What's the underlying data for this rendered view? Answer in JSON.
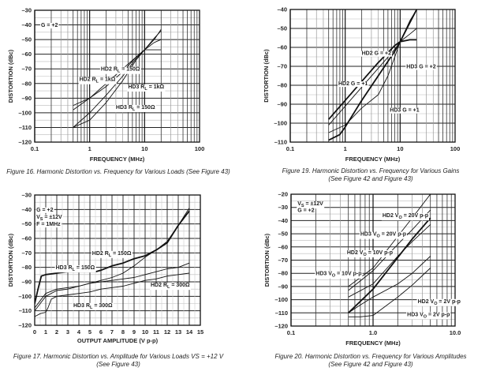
{
  "chart_data": [
    {
      "id": "fig16",
      "type": "line",
      "xscale": "log",
      "caption": "Figure 16. Harmonic Distortion vs. Frequency for Various Loads (See Figure 43)",
      "caption_line2": "",
      "xlabel": "FREQUENCY (MHz)",
      "ylabel": "DISTORTION (dBc)",
      "xlim": [
        0.1,
        100
      ],
      "ylim": [
        -120,
        -30
      ],
      "xticks": [
        {
          "v": 0.1,
          "label": "0.1"
        },
        {
          "v": 1,
          "label": "1"
        },
        {
          "v": 10,
          "label": "10"
        },
        {
          "v": 100,
          "label": "100"
        }
      ],
      "yticks": [
        -30,
        -40,
        -50,
        -60,
        -70,
        -80,
        -90,
        -100,
        -110,
        -120
      ],
      "ytick_labels": [
        "–30",
        "–40",
        "–50",
        "–60",
        "–70",
        "–80",
        "–90",
        "–100",
        "–110",
        "–120"
      ],
      "grid": true,
      "annotations": [
        {
          "text": "G = +2",
          "x": 0.13,
          "y": -40
        },
        {
          "text": "HD2 RL = 150Ω",
          "x": 1.6,
          "y": -70
        },
        {
          "text": "HD2 RL = 1kΩ",
          "x": 0.65,
          "y": -77
        },
        {
          "text": "HD3 RL = 1kΩ",
          "x": 5.0,
          "y": -82
        },
        {
          "text": "HD3 RL = 150Ω",
          "x": 3.0,
          "y": -96
        }
      ],
      "series": [
        {
          "name": "HD2 RL = 150Ω",
          "weight": "thin",
          "x": [
            0.5,
            1,
            2,
            4,
            7,
            10,
            15,
            20
          ],
          "y": [
            -95,
            -90,
            -82,
            -72,
            -62,
            -57,
            -52,
            -50
          ]
        },
        {
          "name": "HD2 RL = 1kΩ",
          "weight": "thin",
          "x": [
            0.5,
            1,
            2,
            4,
            7,
            10,
            15,
            20
          ],
          "y": [
            -98,
            -90,
            -80,
            -70,
            -62,
            -57,
            -57,
            -57
          ]
        },
        {
          "name": "HD3 RL = 1kΩ",
          "weight": "thin",
          "x": [
            0.5,
            1,
            2,
            4,
            7,
            10,
            15,
            20
          ],
          "y": [
            -110,
            -100,
            -88,
            -75,
            -63,
            -57,
            -50,
            -43
          ]
        },
        {
          "name": "HD3 RL = 150Ω",
          "weight": "thin",
          "x": [
            0.5,
            1,
            2,
            4,
            7,
            10,
            15,
            20
          ],
          "y": [
            -110,
            -105,
            -93,
            -78,
            -64,
            -57,
            -49,
            -44
          ]
        }
      ]
    },
    {
      "id": "fig19",
      "type": "line",
      "xscale": "log",
      "caption": "Figure 19. Harmonic Distortion vs. Frequency for Various Gains",
      "caption_line2": "(See Figure 42 and Figure 43)",
      "xlabel": "FREQUENCY (MHz)",
      "ylabel": "DISTORTION (dBc)",
      "xlim": [
        0.1,
        100
      ],
      "ylim": [
        -110,
        -40
      ],
      "xticks": [
        {
          "v": 0.1,
          "label": "0.1"
        },
        {
          "v": 1,
          "label": "1"
        },
        {
          "v": 10,
          "label": "10"
        },
        {
          "v": 100,
          "label": "100"
        }
      ],
      "yticks": [
        -40,
        -50,
        -60,
        -70,
        -80,
        -90,
        -100,
        -110
      ],
      "ytick_labels": [
        "–40",
        "–50",
        "–60",
        "–70",
        "–80",
        "–90",
        "–100",
        "–110"
      ],
      "grid": true,
      "annotations": [
        {
          "text": "HD2 G = +2",
          "x": 2.0,
          "y": -63
        },
        {
          "text": "HD3 G = +2",
          "x": 13,
          "y": -70
        },
        {
          "text": "HD2 G = +1",
          "x": 0.75,
          "y": -79
        },
        {
          "text": "HD3 G = +1",
          "x": 6.5,
          "y": -93
        }
      ],
      "series": [
        {
          "name": "HD2 G = +1",
          "weight": "thick",
          "x": [
            0.5,
            1,
            2,
            4,
            8,
            10,
            15,
            20
          ],
          "y": [
            -98,
            -88,
            -78,
            -68,
            -59,
            -57,
            -56,
            -56
          ]
        },
        {
          "name": "HD2 G = +2",
          "weight": "thin",
          "x": [
            0.5,
            1,
            2,
            4,
            8,
            10,
            15,
            20
          ],
          "y": [
            -101,
            -91,
            -81,
            -71,
            -61,
            -57,
            -53,
            -50
          ]
        },
        {
          "name": "HD3 G = +2",
          "weight": "thick",
          "x": [
            0.5,
            0.8,
            1,
            2,
            4,
            8,
            10,
            15,
            20
          ],
          "y": [
            -109,
            -106,
            -102,
            -88,
            -75,
            -62,
            -57,
            -47,
            -40
          ]
        },
        {
          "name": "HD3 G = +1",
          "weight": "thin",
          "x": [
            0.5,
            1,
            2,
            4,
            6,
            8,
            10,
            15,
            20
          ],
          "y": [
            -105,
            -101,
            -92,
            -85,
            -75,
            -65,
            -57,
            -46,
            -40
          ]
        }
      ]
    },
    {
      "id": "fig17",
      "type": "line",
      "xscale": "linear",
      "caption": "Figure 17. Harmonic Distortion vs. Amplitude for Various Loads VS = +12 V",
      "caption_line2": "(See Figure 43)",
      "xlabel": "OUTPUT AMPLITUDE (V p-p)",
      "ylabel": "DISTORTION (dBc)",
      "xlim": [
        0,
        15
      ],
      "ylim": [
        -120,
        -30
      ],
      "xticks": [
        {
          "v": 0,
          "label": "0"
        },
        {
          "v": 1,
          "label": "1"
        },
        {
          "v": 2,
          "label": "2"
        },
        {
          "v": 3,
          "label": "3"
        },
        {
          "v": 4,
          "label": "4"
        },
        {
          "v": 5,
          "label": "5"
        },
        {
          "v": 6,
          "label": "6"
        },
        {
          "v": 7,
          "label": "7"
        },
        {
          "v": 8,
          "label": "8"
        },
        {
          "v": 9,
          "label": "9"
        },
        {
          "v": 10,
          "label": "10"
        },
        {
          "v": 11,
          "label": "11"
        },
        {
          "v": 12,
          "label": "12"
        },
        {
          "v": 13,
          "label": "13"
        },
        {
          "v": 14,
          "label": "14"
        },
        {
          "v": 15,
          "label": "15"
        }
      ],
      "yticks": [
        -30,
        -40,
        -50,
        -60,
        -70,
        -80,
        -90,
        -100,
        -110,
        -120
      ],
      "ytick_labels": [
        "–30",
        "–40",
        "–50",
        "–60",
        "–70",
        "–80",
        "–90",
        "–100",
        "–110",
        "–120"
      ],
      "grid": true,
      "annotations": [
        {
          "text": "G = +2",
          "x": 0.15,
          "y": -40
        },
        {
          "text": "VS = ±12V",
          "x": 0.15,
          "y": -45
        },
        {
          "text": "F = 1MHz",
          "x": 0.15,
          "y": -50
        },
        {
          "text": "HD2 RL = 150Ω",
          "x": 5.2,
          "y": -70
        },
        {
          "text": "HD3 RL = 150Ω",
          "x": 1.9,
          "y": -80
        },
        {
          "text": "HD2 RL = 300Ω",
          "x": 10.5,
          "y": -92
        },
        {
          "text": "HD3 RL = 300Ω",
          "x": 3.5,
          "y": -106
        }
      ],
      "series": [
        {
          "name": "HD2 RL = 150Ω",
          "weight": "thick",
          "x": [
            0,
            0.3,
            0.6,
            1,
            2,
            3,
            4,
            5,
            5.5,
            6,
            7,
            8,
            9,
            10,
            11,
            12,
            13,
            14
          ],
          "y": [
            -105,
            -95,
            -86,
            -85,
            -84,
            -83,
            -83,
            -83,
            -83,
            -82,
            -79,
            -77,
            -74,
            -72,
            -68,
            -63,
            -51,
            -41
          ]
        },
        {
          "name": "HD3 RL = 150Ω",
          "weight": "thin",
          "x": [
            0,
            0.5,
            1,
            2,
            3,
            4,
            5,
            6,
            7,
            8,
            9,
            10,
            11,
            12,
            13,
            14
          ],
          "y": [
            -108,
            -103,
            -98,
            -95,
            -94,
            -93,
            -91,
            -89,
            -87,
            -84,
            -79,
            -73,
            -68,
            -62,
            -51,
            -39
          ]
        },
        {
          "name": "HD2 RL = 300Ω",
          "weight": "thin",
          "x": [
            0,
            0.5,
            1,
            2,
            3,
            4,
            5,
            6,
            7,
            8,
            9,
            10,
            11,
            12,
            13,
            14
          ],
          "y": [
            -110,
            -105,
            -100,
            -96,
            -95,
            -93,
            -91,
            -90,
            -89,
            -88,
            -87,
            -85,
            -83,
            -81,
            -80,
            -77
          ]
        },
        {
          "name": "HD3 RL = 300Ω",
          "weight": "thin",
          "x": [
            0,
            0.5,
            1,
            1.2,
            1.5,
            2,
            3,
            4,
            5,
            6,
            7,
            8,
            9,
            10,
            11,
            12,
            13,
            14
          ],
          "y": [
            -114,
            -112,
            -111,
            -108,
            -102,
            -100,
            -99,
            -98,
            -97,
            -95,
            -94,
            -93,
            -91,
            -89,
            -88,
            -86,
            -85,
            -84
          ]
        }
      ]
    },
    {
      "id": "fig20",
      "type": "line",
      "xscale": "log",
      "caption": "Figure 20. Harmonic Distortion vs. Frequency for Various Amplitudes",
      "caption_line2": "(See Figure 42 and Figure 43)",
      "xlabel": "FREQUENCY (MHz)",
      "ylabel": "DISTORTION (dBc)",
      "xlim": [
        0.1,
        10
      ],
      "ylim": [
        -120,
        -20
      ],
      "xticks": [
        {
          "v": 0.1,
          "label": "0.1"
        },
        {
          "v": 1,
          "label": "1.0"
        },
        {
          "v": 10,
          "label": "10.0"
        }
      ],
      "yticks": [
        -20,
        -30,
        -40,
        -50,
        -60,
        -70,
        -80,
        -90,
        -100,
        -110,
        -120
      ],
      "ytick_labels": [
        "–20",
        "–30",
        "–40",
        "–50",
        "–60",
        "–70",
        "–80",
        "–90",
        "–100",
        "–110",
        "–120"
      ],
      "grid": true,
      "annotations": [
        {
          "text": "VS = ±12V",
          "x": 0.12,
          "y": -27
        },
        {
          "text": "G = +2",
          "x": 0.12,
          "y": -32
        },
        {
          "text": "HD2 VO = 20V p-p",
          "x": 1.3,
          "y": -36
        },
        {
          "text": "HD3 VO = 20V p-p",
          "x": 0.7,
          "y": -50
        },
        {
          "text": "HD2 VO = 10V p-p",
          "x": 0.48,
          "y": -64
        },
        {
          "text": "HD3 VO = 10V p-p",
          "x": 0.2,
          "y": -80
        },
        {
          "text": "HD2 VO = 2V p-p",
          "x": 3.5,
          "y": -101
        },
        {
          "text": "HD3 VO = 2V p-p",
          "x": 2.6,
          "y": -111
        }
      ],
      "series": [
        {
          "name": "HD2 VO = 20V p-p",
          "weight": "thin",
          "x": [
            0.5,
            1,
            2,
            3,
            5
          ],
          "y": [
            -90,
            -76,
            -52,
            -38,
            -20
          ]
        },
        {
          "name": "HD3 VO = 20V p-p",
          "weight": "thin",
          "x": [
            0.5,
            1,
            2,
            3,
            5
          ],
          "y": [
            -93,
            -78,
            -58,
            -47,
            -32
          ]
        },
        {
          "name": "HD2 VO = 10V p-p",
          "weight": "thin",
          "x": [
            0.5,
            1,
            2,
            3,
            5
          ],
          "y": [
            -98,
            -88,
            -67,
            -56,
            -43
          ]
        },
        {
          "name": "HD3 VO = 10V p-p",
          "weight": "thick",
          "x": [
            0.5,
            1,
            2,
            3,
            5
          ],
          "y": [
            -110,
            -92,
            -68,
            -54,
            -38
          ]
        },
        {
          "name": "HD2 VO = 2V p-p",
          "weight": "thin",
          "x": [
            0.5,
            0.7,
            1,
            2,
            3,
            5
          ],
          "y": [
            -110,
            -104,
            -98,
            -88,
            -80,
            -67
          ]
        },
        {
          "name": "HD3 VO = 2V p-p",
          "weight": "thin",
          "x": [
            0.5,
            0.7,
            1,
            2,
            3,
            5
          ],
          "y": [
            -113,
            -113,
            -112,
            -98,
            -89,
            -76
          ]
        }
      ]
    }
  ]
}
